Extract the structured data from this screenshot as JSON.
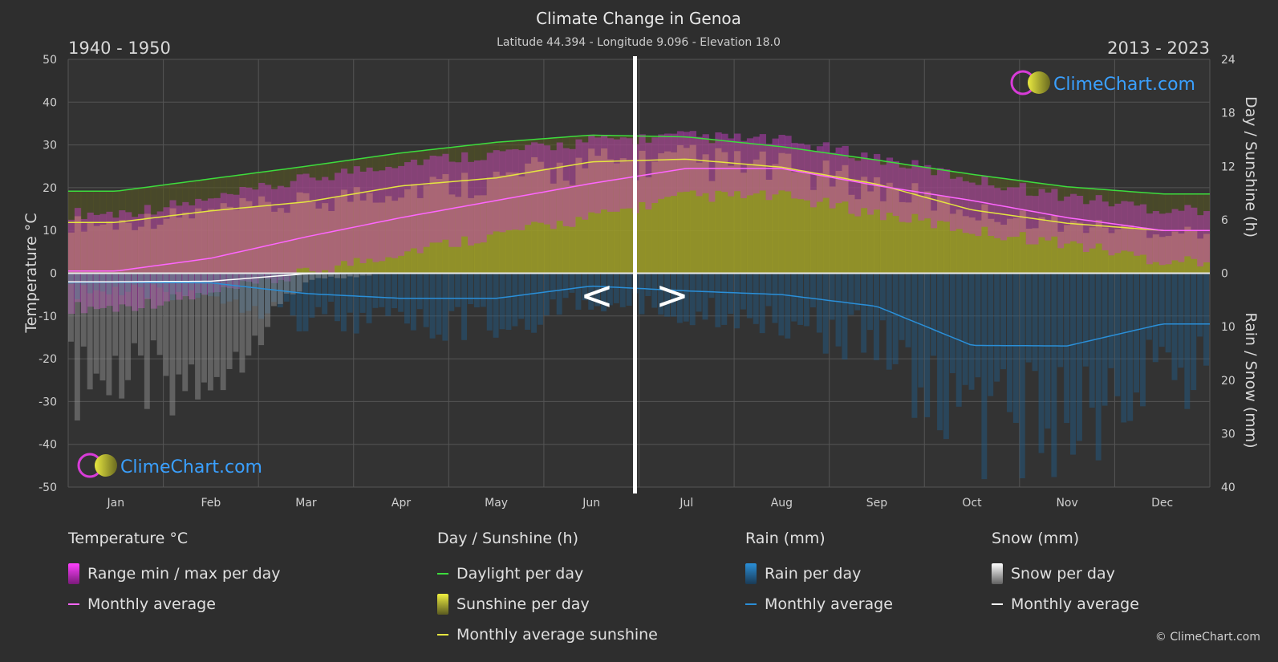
{
  "chart_data": {
    "type": "area",
    "title": "Climate Change in Genoa",
    "subtitle": "Latitude 44.394 - Longitude 9.096 - Elevation 18.0",
    "period_left": "1940 - 1950",
    "period_right": "2013 - 2023",
    "nav_prev": "<",
    "nav_next": ">",
    "watermark": "ClimeChart.com",
    "y_left": {
      "label": "Temperature °C",
      "min": -50,
      "max": 50,
      "ticks": [
        50,
        40,
        30,
        20,
        10,
        0,
        -10,
        -20,
        -30,
        -40,
        -50
      ]
    },
    "y_right_top": {
      "label": "Day / Sunshine (h)",
      "min": 0,
      "max": 24,
      "ticks": [
        24,
        18,
        12,
        6,
        0
      ]
    },
    "y_right_bottom": {
      "label": "Rain / Snow (mm)",
      "min": 0,
      "max": 40,
      "ticks": [
        0,
        10,
        20,
        30,
        40
      ]
    },
    "months": [
      "Jan",
      "Feb",
      "Mar",
      "Apr",
      "May",
      "Jun",
      "Jul",
      "Aug",
      "Sep",
      "Oct",
      "Nov",
      "Dec"
    ],
    "series": [
      {
        "name": "Daylight per day",
        "unit": "h",
        "color": "#3ddc3d",
        "values": [
          9.2,
          10.6,
          12.0,
          13.5,
          14.7,
          15.5,
          15.3,
          14.2,
          12.7,
          11.1,
          9.7,
          8.9
        ]
      },
      {
        "name": "Monthly average sunshine",
        "unit": "h",
        "color": "#e5e540",
        "values": [
          5.7,
          7.0,
          8.0,
          9.8,
          10.7,
          12.5,
          12.8,
          11.9,
          10.0,
          7.1,
          5.6,
          4.8
        ]
      },
      {
        "name": "Temperature monthly average",
        "unit": "°C",
        "color": "#ff66ff",
        "values": [
          0.5,
          3.5,
          8.5,
          13.0,
          17.0,
          21.0,
          24.5,
          24.5,
          20.5,
          17.0,
          13.0,
          10.0
        ]
      },
      {
        "name": "Temperature max per day",
        "unit": "°C",
        "color": "#d63cd6",
        "values": [
          14,
          17,
          22,
          26,
          28,
          31,
          32,
          31,
          27,
          22,
          18,
          15
        ]
      },
      {
        "name": "Temperature min per day",
        "unit": "°C",
        "color": "#d63cd6",
        "values": [
          -8,
          -5,
          0,
          5,
          9,
          13,
          18,
          18,
          14,
          10,
          7,
          3
        ]
      },
      {
        "name": "Rain monthly average",
        "unit": "mm",
        "color": "#2a8fd8",
        "values": [
          1.7,
          1.8,
          3.8,
          4.7,
          4.7,
          2.4,
          3.3,
          4.0,
          6.2,
          13.5,
          13.6,
          9.5
        ]
      },
      {
        "name": "Snow monthly average",
        "unit": "mm",
        "color": "#ffffff",
        "values": [
          1.6,
          1.5,
          0.1,
          0,
          0,
          0,
          0,
          0,
          0,
          0,
          0,
          0
        ]
      }
    ],
    "legend_placement": "bottom",
    "grid": true
  },
  "legend": {
    "temperature": {
      "title": "Temperature °C",
      "items": [
        "Range min / max per day",
        "Monthly average"
      ]
    },
    "sunshine": {
      "title": "Day / Sunshine (h)",
      "items": [
        "Daylight per day",
        "Sunshine per day",
        "Monthly average sunshine"
      ]
    },
    "rain": {
      "title": "Rain (mm)",
      "items": [
        "Rain per day",
        "Monthly average"
      ]
    },
    "snow": {
      "title": "Snow (mm)",
      "items": [
        "Snow per day",
        "Monthly average"
      ]
    }
  },
  "copyright": "© ClimeChart.com",
  "colors": {
    "background": "#2e2e2e",
    "plot": "#333333",
    "grid": "#5a5a5a",
    "temp_range": "#c23cc2",
    "sunshine_fill": "#a8a829",
    "rain_fill": "#1f5e8c",
    "snow_fill": "#9a9a9a",
    "watermark_text": "#3aa0ff"
  }
}
